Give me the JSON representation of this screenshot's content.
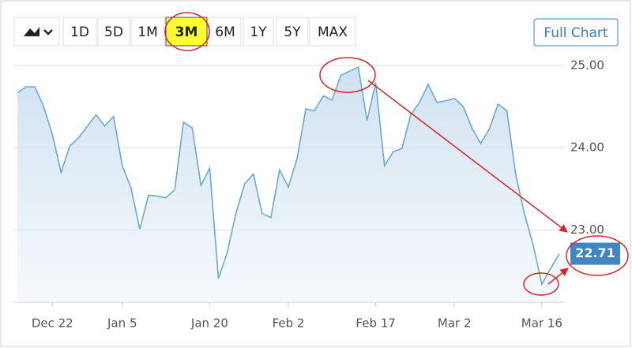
{
  "chart_data": {
    "type": "area",
    "range_buttons": [
      "1D",
      "5D",
      "1M",
      "3M",
      "6M",
      "1Y",
      "5Y",
      "MAX"
    ],
    "selected_range": "3M",
    "full_chart_button": "Full Chart",
    "categories": [
      null,
      null,
      null,
      null,
      "Dec 22",
      null,
      null,
      null,
      null,
      null,
      null,
      null,
      "Jan 5",
      null,
      null,
      null,
      null,
      null,
      null,
      null,
      null,
      null,
      "Jan 20",
      null,
      null,
      null,
      null,
      null,
      null,
      null,
      null,
      "Feb 2",
      null,
      null,
      null,
      null,
      null,
      null,
      null,
      null,
      null,
      "Feb 17",
      null,
      null,
      null,
      null,
      null,
      null,
      null,
      null,
      "Mar 2",
      null,
      null,
      null,
      null,
      null,
      null,
      null,
      null,
      null,
      "Mar 16",
      null,
      null
    ],
    "series": [
      {
        "color": "#6aa9d6",
        "values": [
          24.67,
          24.74,
          24.74,
          24.5,
          24.16,
          23.7,
          24.02,
          24.12,
          24.26,
          24.4,
          24.26,
          24.38,
          23.78,
          23.51,
          23.01,
          23.42,
          23.41,
          23.39,
          23.49,
          24.31,
          24.24,
          23.54,
          23.75,
          22.41,
          22.72,
          23.2,
          23.56,
          23.68,
          23.2,
          23.15,
          23.73,
          23.52,
          23.87,
          24.47,
          24.45,
          24.63,
          24.58,
          24.88,
          24.93,
          24.98,
          24.33,
          24.79,
          23.78,
          23.95,
          23.99,
          24.4,
          24.55,
          24.77,
          24.55,
          24.57,
          24.6,
          24.5,
          24.24,
          24.05,
          24.23,
          24.53,
          24.45,
          23.68,
          23.2,
          22.82,
          22.34,
          22.53,
          22.71
        ]
      }
    ],
    "last_value_color": "#3d87c4",
    "ylim": [
      22.12,
      25.22
    ],
    "yticks": [
      {
        "value": 23,
        "label": "23.00"
      },
      {
        "value": 24,
        "label": "24.00"
      },
      {
        "value": 25,
        "label": "25.00"
      }
    ],
    "grid": true
  }
}
